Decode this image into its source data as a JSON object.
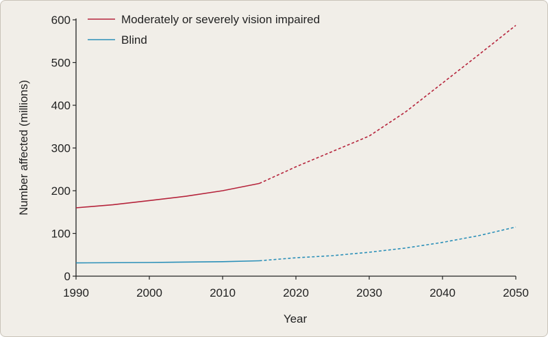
{
  "chart_data": {
    "type": "line",
    "title": "",
    "xlabel": "Year",
    "ylabel": "Number affected (millions)",
    "xlim": [
      1990,
      2050
    ],
    "ylim": [
      0,
      600
    ],
    "x_ticks": [
      1990,
      2000,
      2010,
      2020,
      2030,
      2040,
      2050
    ],
    "y_ticks": [
      0,
      100,
      200,
      300,
      400,
      500,
      600
    ],
    "grid": false,
    "legend_position": "top-left",
    "series": [
      {
        "name": "Moderately or severely vision impaired",
        "color": "#b5223a",
        "points": [
          {
            "x": 1990,
            "y": 160
          },
          {
            "x": 1995,
            "y": 167
          },
          {
            "x": 2000,
            "y": 177
          },
          {
            "x": 2005,
            "y": 187
          },
          {
            "x": 2010,
            "y": 200
          },
          {
            "x": 2015,
            "y": 217
          },
          {
            "x": 2020,
            "y": 256
          },
          {
            "x": 2025,
            "y": 292
          },
          {
            "x": 2030,
            "y": 328
          },
          {
            "x": 2035,
            "y": 385
          },
          {
            "x": 2040,
            "y": 452
          },
          {
            "x": 2045,
            "y": 519
          },
          {
            "x": 2050,
            "y": 587
          }
        ],
        "projection_from": 2015
      },
      {
        "name": "Blind",
        "color": "#2a8fb8",
        "points": [
          {
            "x": 1990,
            "y": 31
          },
          {
            "x": 2000,
            "y": 32
          },
          {
            "x": 2010,
            "y": 34
          },
          {
            "x": 2015,
            "y": 36
          },
          {
            "x": 2020,
            "y": 43
          },
          {
            "x": 2025,
            "y": 48
          },
          {
            "x": 2030,
            "y": 56
          },
          {
            "x": 2035,
            "y": 66
          },
          {
            "x": 2040,
            "y": 79
          },
          {
            "x": 2045,
            "y": 95
          },
          {
            "x": 2050,
            "y": 115
          }
        ],
        "projection_from": 2015
      }
    ]
  }
}
